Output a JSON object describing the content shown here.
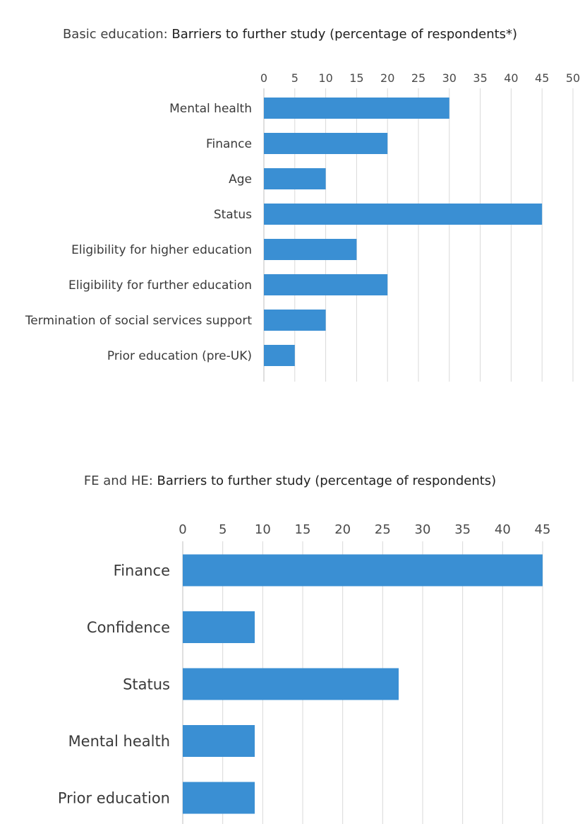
{
  "charts": [
    {
      "title_prefix": "Basic education: ",
      "title_main": "Barriers to further study (percentage of respondents*)"
    },
    {
      "title_prefix": "FE and HE: ",
      "title_main": "Barriers to further study (percentage of respondents)"
    }
  ],
  "chart_data": [
    {
      "type": "bar",
      "orientation": "horizontal",
      "title": "Basic education: Barriers to further study (percentage of respondents*)",
      "categories": [
        "Mental health",
        "Finance",
        "Age",
        "Status",
        "Eligibility for higher education",
        "Eligibility for further education",
        "Termination of social services support",
        "Prior education (pre-UK)"
      ],
      "values": [
        30,
        20,
        10,
        45,
        15,
        20,
        10,
        5
      ],
      "xlim": [
        0,
        50
      ],
      "ticks": [
        "0",
        "5",
        "10",
        "15",
        "20",
        "25",
        "30",
        "35",
        "40",
        "45",
        "50"
      ],
      "tick_values": [
        0,
        5,
        10,
        15,
        20,
        25,
        30,
        35,
        40,
        45,
        50
      ],
      "axis_position": "top",
      "grid": true,
      "color": "#3a8fd3"
    },
    {
      "type": "bar",
      "orientation": "horizontal",
      "title": "FE and HE: Barriers to further study (percentage of respondents)",
      "categories": [
        "Finance",
        "Confidence",
        "Status",
        "Mental health",
        "Prior education"
      ],
      "values": [
        45,
        9,
        27,
        9,
        9
      ],
      "xlim": [
        0,
        45
      ],
      "ticks": [
        "0",
        "5",
        "10",
        "15",
        "20",
        "25",
        "30",
        "35",
        "40",
        "45"
      ],
      "tick_values": [
        0,
        5,
        10,
        15,
        20,
        25,
        30,
        35,
        40,
        45
      ],
      "axis_position": "top",
      "grid": true,
      "color": "#3a8fd3"
    }
  ]
}
